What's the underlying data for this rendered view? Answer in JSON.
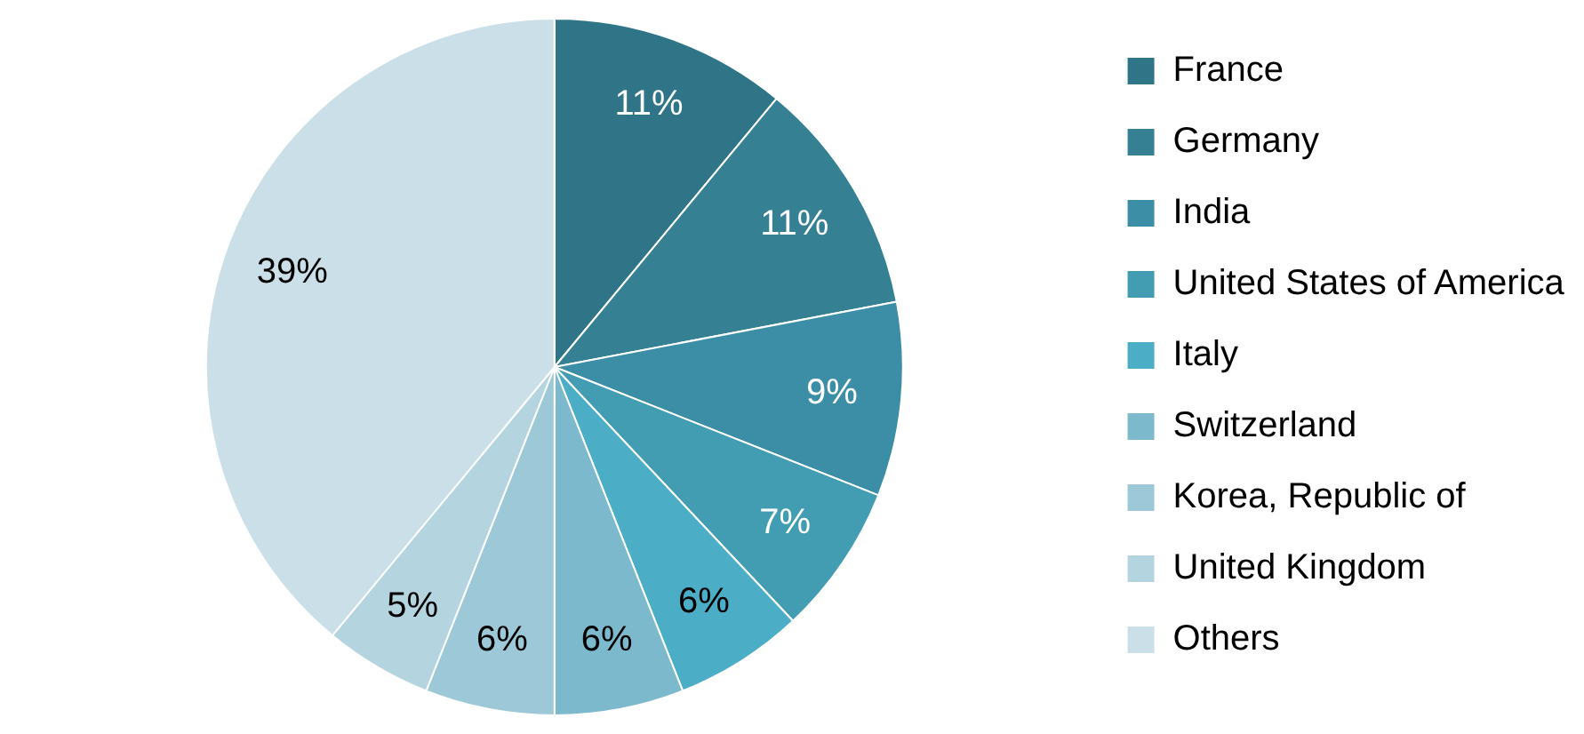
{
  "chart_data": {
    "type": "pie",
    "categories": [
      "France",
      "Germany",
      "India",
      "United States of America",
      "Italy",
      "Switzerland",
      "Korea, Republic of",
      "United Kingdom",
      "Others"
    ],
    "values": [
      11,
      11,
      9,
      7,
      6,
      6,
      6,
      5,
      39
    ],
    "colors": [
      "#2f7587",
      "#358193",
      "#3b8ea5",
      "#429cb2",
      "#4badc6",
      "#7cb9cd",
      "#9dc8d7",
      "#b4d4e0",
      "#cadfe8"
    ],
    "value_labels": [
      "11%",
      "11%",
      "9%",
      "7%",
      "6%",
      "6%",
      "6%",
      "5%",
      "39%"
    ],
    "legend": "right"
  }
}
